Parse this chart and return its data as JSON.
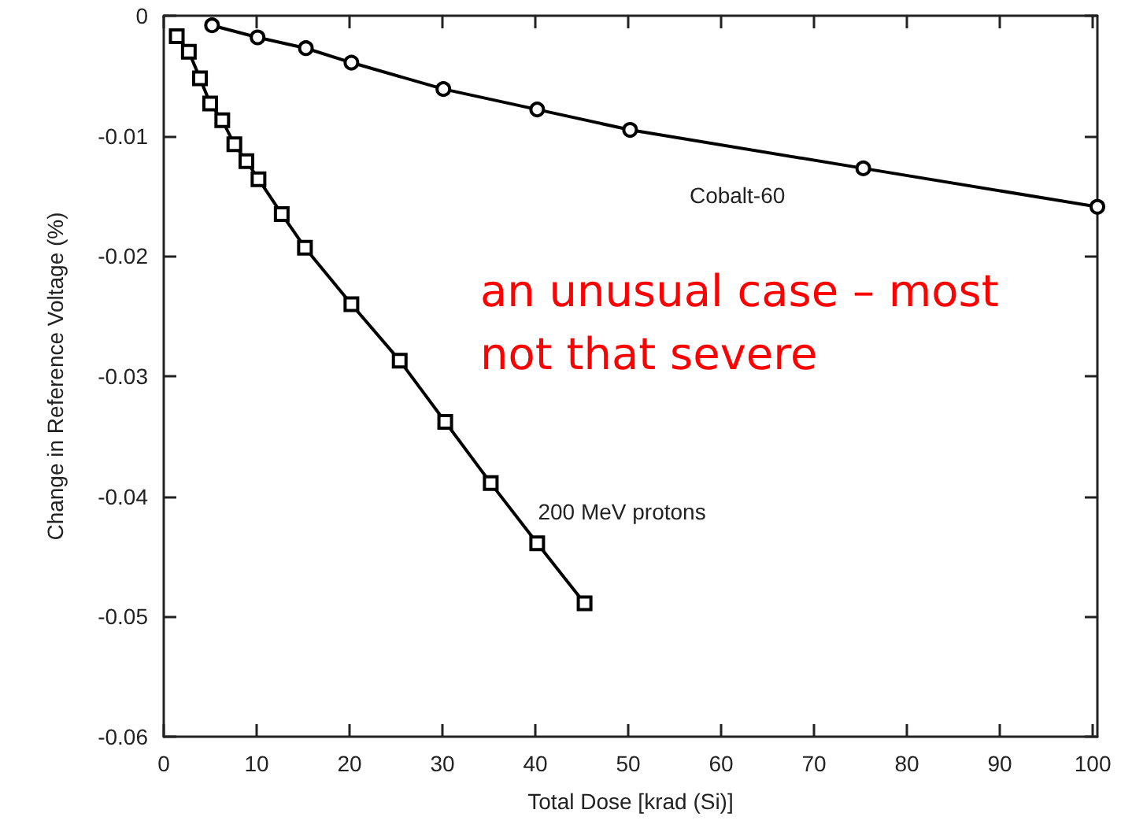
{
  "chart_data": {
    "type": "line",
    "xlabel": "Total Dose [krad (Si)]",
    "ylabel": "Change in Reference Voltage (%)",
    "annotations": [
      "an unusual case – most not that severe"
    ],
    "xlim": [
      0,
      100.5
    ],
    "xticks": [
      0,
      10,
      20,
      30,
      40,
      50,
      60,
      70,
      80,
      90,
      100
    ],
    "ylim": [
      -0.06,
      0
    ],
    "yticks": [
      0,
      -0.01,
      -0.02,
      -0.03,
      -0.04,
      -0.05,
      -0.06
    ],
    "grid": false,
    "legend": false,
    "line_style": "solid",
    "series": [
      {
        "name": "Cobalt-60",
        "color": "#000000",
        "marker": "circle",
        "x": [
          5.2,
          10.1,
          15.3,
          20.2,
          30.1,
          40.2,
          50.2,
          75.3,
          100.5
        ],
        "values": [
          -0.0008,
          -0.0018,
          -0.0027,
          -0.0039,
          -0.0061,
          -0.0078,
          -0.0095,
          -0.0127,
          -0.0159
        ]
      },
      {
        "name": "200 MeV protons",
        "color": "#000000",
        "marker": "square",
        "x": [
          1.4,
          2.7,
          3.9,
          5.0,
          6.3,
          7.6,
          8.9,
          10.2,
          12.7,
          15.2,
          20.2,
          25.4,
          30.3,
          35.2,
          40.2,
          45.3
        ],
        "values": [
          -0.0017,
          -0.003,
          -0.0052,
          -0.0073,
          -0.0087,
          -0.0107,
          -0.0121,
          -0.0136,
          -0.0165,
          -0.0193,
          -0.024,
          -0.0287,
          -0.0338,
          -0.0389,
          -0.0439,
          -0.0489
        ]
      }
    ]
  }
}
